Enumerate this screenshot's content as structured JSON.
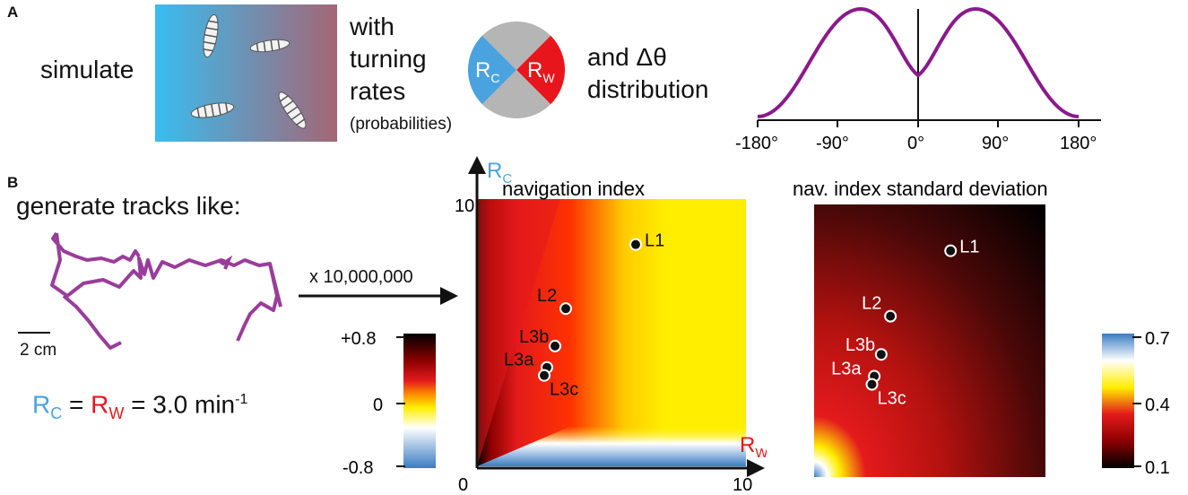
{
  "panel_a": {
    "label": "A",
    "simulate": "simulate",
    "with_text": "with",
    "turning_text": "turning",
    "rates_text": "rates",
    "probabilities_text": "(probabilities)",
    "and_text": "and Δθ",
    "distribution_text": "distribution",
    "circle": {
      "rc_main": "R",
      "rc_sub": "C",
      "rw_main": "R",
      "rw_sub": "W"
    },
    "colors": {
      "rc": "#4aa3df",
      "rw": "#e8161c",
      "gray": "#b5b5b5",
      "curve": "#8b1a8b"
    },
    "angle_ticks": [
      "-180°",
      "-90°",
      "0°",
      "90°",
      "180°"
    ]
  },
  "panel_b": {
    "label": "B",
    "generate": "generate tracks like:",
    "scale_bar": "2 cm",
    "multiplier": "x 10,000,000",
    "eq_rc": "R",
    "eq_rc_sub": "C",
    "eq_eq1": " = ",
    "eq_rw": "R",
    "eq_rw_sub": "W",
    "eq_rest": " = 3.0 min",
    "eq_exp": "-1",
    "axis_y_main": "R",
    "axis_y_sub": "C",
    "axis_x_main": "R",
    "axis_x_sub": "W",
    "axis_ticks": {
      "zero": "0",
      "ten_x": "10",
      "ten_y": "10"
    },
    "heatmap1_title": "navigation index",
    "heatmap2_title": "nav. index standard deviation",
    "colorbar1_ticks": [
      "+0.8",
      "0",
      "-0.8"
    ],
    "colorbar2_ticks": [
      "0.7",
      "0.4",
      "0.1"
    ],
    "points": [
      {
        "label": "L1",
        "rw": 5.9,
        "rc": 8.3
      },
      {
        "label": "L2",
        "rw": 3.3,
        "rc": 5.9
      },
      {
        "label": "L3b",
        "rw": 2.9,
        "rc": 4.5
      },
      {
        "label": "L3a",
        "rw": 2.6,
        "rc": 3.7
      },
      {
        "label": "L3c",
        "rw": 2.5,
        "rc": 3.4
      }
    ]
  }
}
